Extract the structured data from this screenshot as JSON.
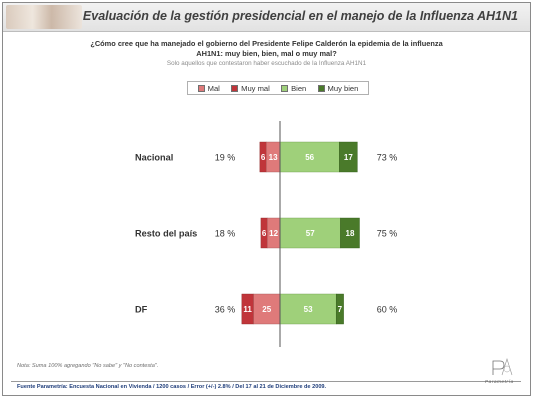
{
  "header": {
    "title": "Evaluación de la gestión presidencial en el manejo de la Influenza AH1N1"
  },
  "question": {
    "line1": "¿Cómo cree que ha manejado el gobierno del Presidente Felipe Calderón la epidemia de la influenza",
    "line2": "AH1N1: muy bien, bien, mal o muy mal?",
    "note": "Solo aquellos que contestaron haber escuchado  de la Influenza AH1N1"
  },
  "colors": {
    "muy_mal": "#c0353a",
    "mal": "#df7a7a",
    "bien": "#9fd07a",
    "muy_bien": "#4a7a2a"
  },
  "chart_data": {
    "type": "bar",
    "orientation": "horizontal-diverging",
    "legend_position": "top",
    "legend": [
      "Mal",
      "Muy mal",
      "Bien",
      "Muy bien"
    ],
    "categories": [
      "Nacional",
      "Resto del país",
      "DF"
    ],
    "series": [
      {
        "name": "Mal",
        "values": [
          13,
          12,
          25
        ]
      },
      {
        "name": "Muy mal",
        "values": [
          6,
          6,
          11
        ]
      },
      {
        "name": "Bien",
        "values": [
          56,
          57,
          53
        ]
      },
      {
        "name": "Muy bien",
        "values": [
          17,
          18,
          7
        ]
      }
    ],
    "negative_totals": [
      "19 %",
      "18 %",
      "36 %"
    ],
    "positive_totals": [
      "73 %",
      "75 %",
      "60 %"
    ]
  },
  "footnote": "Nota: Suma 100%  agregando \"No sabe\" y \"No contesta\".",
  "footer": "Fuente Parametría: Encuesta Nacional en Vivienda / 1200 casos / Error (+/-) 2.8% / Del 17 al 21 de Diciembre de 2009.",
  "logo": {
    "word": "Parametría"
  }
}
